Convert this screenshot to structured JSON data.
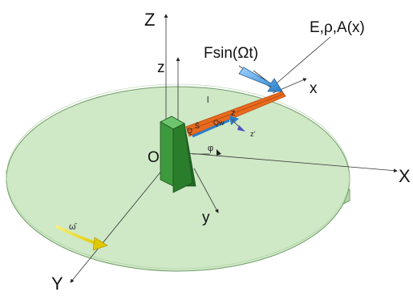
{
  "labels": {
    "Z_axis": "Z",
    "z_axis": "z",
    "force": "Fsin(Ωt)",
    "props": "E,ρ,A(x)",
    "x_axis": "x",
    "length": "l",
    "z_local": "z",
    "z_prime": "z'",
    "S_vec": "S̄",
    "Q_vec": "Q",
    "Qw": "Qw",
    "phi": "φ",
    "origin": "O",
    "X_axis": "X",
    "y_axis": "y",
    "omega": "ω̄",
    "Y_axis": "Y"
  },
  "colors": {
    "disk_fill": "#cfe8c6",
    "disk_edge": "#6f9c66",
    "block_front": "#3c9a3c",
    "block_side": "#1f6b1f",
    "block_top": "#6cc56c",
    "beam": "#e86a1e",
    "force_arrow": "#4aa0e0",
    "omega_arrow": "#f0e020"
  }
}
